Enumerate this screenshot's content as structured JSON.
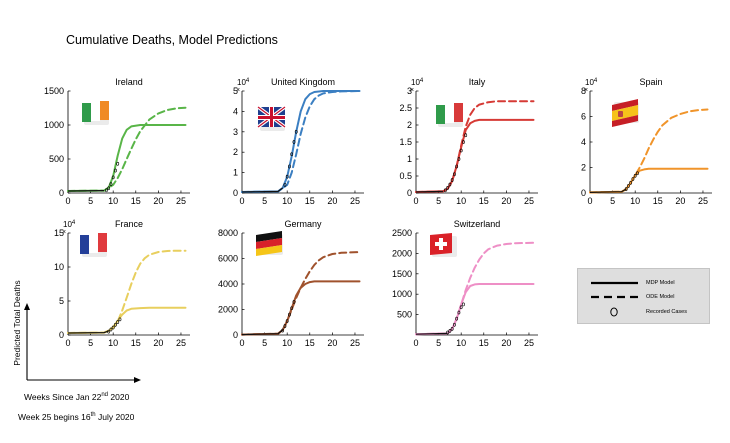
{
  "figure": {
    "title": "Cumulative Deaths, Model Predictions",
    "xaxis_note": "Weeks Since Jan 22",
    "xaxis_note_sup": "nd",
    "xaxis_note_tail": " 2020",
    "week_note": "Week 25 begins 16",
    "week_note_sup": "th",
    "week_note_tail": " July 2020",
    "ylabel": "Predicted Total Deaths"
  },
  "legend": {
    "items": [
      {
        "label": "MDP Model",
        "style": "solid"
      },
      {
        "label": "ODE Model",
        "style": "dashed"
      },
      {
        "label": "Recorded Cases",
        "style": "circle"
      }
    ]
  },
  "chart_data": [
    {
      "type": "line",
      "title": "Ireland",
      "color": "#59b548",
      "flag": "ireland-flag",
      "multiplier": "",
      "xlim": [
        0,
        27
      ],
      "ylim": [
        0,
        1500
      ],
      "xticks": [
        0,
        5,
        10,
        15,
        20,
        25
      ],
      "yticks": [
        0,
        500,
        1000,
        1500
      ],
      "ytick_labels": [
        "0",
        "500",
        "1000",
        "1500"
      ],
      "series": [
        {
          "name": "MDP Model",
          "style": "solid",
          "x": [
            0,
            8,
            9,
            10,
            11,
            12,
            13,
            14,
            16,
            18,
            26
          ],
          "y": [
            30,
            35,
            80,
            250,
            550,
            800,
            930,
            980,
            1000,
            1000,
            1000
          ]
        },
        {
          "name": "ODE Model",
          "style": "dashed",
          "x": [
            0,
            8,
            10,
            11,
            12,
            13,
            14,
            15,
            16,
            18,
            20,
            22,
            24,
            26
          ],
          "y": [
            30,
            35,
            120,
            220,
            350,
            500,
            650,
            790,
            910,
            1080,
            1170,
            1220,
            1245,
            1255
          ]
        },
        {
          "name": "Recorded Cases",
          "style": "circle",
          "x": [
            8.5,
            9,
            9.5,
            10,
            10.5,
            11
          ],
          "y": [
            40,
            70,
            130,
            230,
            330,
            430
          ]
        }
      ]
    },
    {
      "type": "line",
      "title": "United Kingdom",
      "color": "#3b7fc2",
      "flag": "uk-flag",
      "multiplier": "10^4",
      "xlim": [
        0,
        27
      ],
      "ylim": [
        0,
        5
      ],
      "xticks": [
        0,
        5,
        10,
        15,
        20,
        25
      ],
      "yticks": [
        0,
        1,
        2,
        3,
        4,
        5
      ],
      "ytick_labels": [
        "0",
        "1",
        "2",
        "3",
        "4",
        "5"
      ],
      "series": [
        {
          "name": "MDP Model",
          "style": "solid",
          "x": [
            0,
            8,
            9,
            10,
            11,
            12,
            13,
            14,
            15,
            16,
            18,
            20,
            26
          ],
          "y": [
            0.05,
            0.08,
            0.25,
            0.8,
            1.8,
            3.0,
            4.0,
            4.6,
            4.85,
            4.95,
            5.0,
            5.0,
            5.0
          ]
        },
        {
          "name": "ODE Model",
          "style": "dashed",
          "x": [
            0,
            8,
            10,
            11,
            12,
            13,
            14,
            15,
            16,
            17,
            18,
            20,
            22,
            26
          ],
          "y": [
            0.05,
            0.08,
            0.4,
            1.0,
            1.9,
            2.9,
            3.7,
            4.25,
            4.6,
            4.78,
            4.88,
            4.95,
            4.98,
            5.0
          ]
        },
        {
          "name": "Recorded Cases",
          "style": "circle",
          "x": [
            9.5,
            10,
            10.5,
            11,
            11.5,
            12
          ],
          "y": [
            0.4,
            0.8,
            1.3,
            1.9,
            2.5,
            3.0
          ]
        }
      ]
    },
    {
      "type": "line",
      "title": "Italy",
      "color": "#d63a35",
      "flag": "italy-flag",
      "multiplier": "10^4",
      "xlim": [
        0,
        27
      ],
      "ylim": [
        0,
        3
      ],
      "xticks": [
        0,
        5,
        10,
        15,
        20,
        25
      ],
      "yticks": [
        0,
        0.5,
        1,
        1.5,
        2,
        2.5,
        3
      ],
      "ytick_labels": [
        "0",
        "0.5",
        "1",
        "1.5",
        "2",
        "2.5",
        "3"
      ],
      "series": [
        {
          "name": "MDP Model",
          "style": "solid",
          "x": [
            0,
            6,
            7,
            8,
            9,
            10,
            11,
            12,
            13,
            14,
            16,
            26
          ],
          "y": [
            0.03,
            0.05,
            0.12,
            0.35,
            0.8,
            1.35,
            1.85,
            2.05,
            2.12,
            2.15,
            2.15,
            2.15
          ]
        },
        {
          "name": "ODE Model",
          "style": "dashed",
          "x": [
            0,
            6,
            7,
            8,
            9,
            10,
            11,
            12,
            13,
            14,
            16,
            18,
            20,
            26
          ],
          "y": [
            0.03,
            0.05,
            0.12,
            0.35,
            0.8,
            1.4,
            1.95,
            2.3,
            2.5,
            2.6,
            2.67,
            2.7,
            2.7,
            2.7
          ]
        },
        {
          "name": "Recorded Cases",
          "style": "circle",
          "x": [
            6.5,
            7,
            7.5,
            8,
            8.5,
            9,
            9.5,
            10,
            10.5,
            11
          ],
          "y": [
            0.08,
            0.15,
            0.25,
            0.38,
            0.55,
            0.78,
            1.0,
            1.25,
            1.5,
            1.7
          ]
        }
      ]
    },
    {
      "type": "line",
      "title": "Spain",
      "color": "#f0942a",
      "flag": "spain-flag",
      "multiplier": "10^4",
      "xlim": [
        0,
        27
      ],
      "ylim": [
        0,
        8
      ],
      "xticks": [
        0,
        5,
        10,
        15,
        20,
        25
      ],
      "yticks": [
        0,
        2,
        4,
        6,
        8
      ],
      "ytick_labels": [
        "0",
        "2",
        "4",
        "6",
        "8"
      ],
      "series": [
        {
          "name": "MDP Model",
          "style": "solid",
          "x": [
            0,
            7,
            8,
            9,
            10,
            11,
            12,
            13,
            14,
            16,
            26
          ],
          "y": [
            0.05,
            0.1,
            0.3,
            0.8,
            1.4,
            1.75,
            1.85,
            1.9,
            1.9,
            1.9,
            1.9
          ]
        },
        {
          "name": "ODE Model",
          "style": "dashed",
          "x": [
            0,
            7,
            8,
            9,
            10,
            11,
            12,
            13,
            14,
            15,
            16,
            18,
            20,
            22,
            24,
            26
          ],
          "y": [
            0.05,
            0.1,
            0.3,
            0.8,
            1.4,
            2.0,
            2.7,
            3.5,
            4.2,
            4.8,
            5.3,
            5.9,
            6.2,
            6.4,
            6.5,
            6.55
          ]
        },
        {
          "name": "Recorded Cases",
          "style": "circle",
          "x": [
            8,
            8.5,
            9,
            9.5,
            10,
            10.5
          ],
          "y": [
            0.3,
            0.55,
            0.8,
            1.1,
            1.35,
            1.55
          ]
        }
      ]
    },
    {
      "type": "line",
      "title": "France",
      "color": "#e8cf5e",
      "flag": "france-flag",
      "multiplier": "10^4",
      "xlim": [
        0,
        27
      ],
      "ylim": [
        0,
        15
      ],
      "xticks": [
        0,
        5,
        10,
        15,
        20,
        25
      ],
      "yticks": [
        0,
        5,
        10,
        15
      ],
      "ytick_labels": [
        "0",
        "5",
        "10",
        "15"
      ],
      "series": [
        {
          "name": "MDP Model",
          "style": "solid",
          "x": [
            0,
            8,
            9,
            10,
            11,
            12,
            13,
            14,
            16,
            18,
            26
          ],
          "y": [
            0.3,
            0.35,
            0.6,
            1.2,
            2.1,
            3.0,
            3.6,
            3.85,
            3.95,
            4.0,
            4.0
          ]
        },
        {
          "name": "ODE Model",
          "style": "dashed",
          "x": [
            0,
            8,
            10,
            11,
            12,
            13,
            14,
            15,
            16,
            17,
            18,
            20,
            22,
            24,
            26
          ],
          "y": [
            0.3,
            0.35,
            1.0,
            2.0,
            3.6,
            5.5,
            7.5,
            9.2,
            10.5,
            11.3,
            11.8,
            12.2,
            12.35,
            12.4,
            12.4
          ]
        },
        {
          "name": "Recorded Cases",
          "style": "circle",
          "x": [
            9,
            9.5,
            10,
            10.5,
            11,
            11.5
          ],
          "y": [
            0.5,
            0.8,
            1.1,
            1.5,
            1.9,
            2.3
          ]
        }
      ]
    },
    {
      "type": "line",
      "title": "Germany",
      "color": "#a0522d",
      "flag": "germany-flag",
      "multiplier": "",
      "xlim": [
        0,
        27
      ],
      "ylim": [
        0,
        8000
      ],
      "xticks": [
        0,
        5,
        10,
        15,
        20,
        25
      ],
      "yticks": [
        0,
        2000,
        4000,
        6000,
        8000
      ],
      "ytick_labels": [
        "0",
        "2000",
        "4000",
        "6000",
        "8000"
      ],
      "series": [
        {
          "name": "MDP Model",
          "style": "solid",
          "x": [
            0,
            8,
            9,
            10,
            11,
            12,
            13,
            14,
            15,
            16,
            18,
            20,
            26
          ],
          "y": [
            30,
            100,
            400,
            1100,
            2100,
            3100,
            3700,
            4000,
            4150,
            4200,
            4200,
            4200,
            4200
          ]
        },
        {
          "name": "ODE Model",
          "style": "dashed",
          "x": [
            0,
            8,
            9,
            10,
            11,
            12,
            13,
            14,
            15,
            16,
            17,
            18,
            20,
            22,
            24,
            26
          ],
          "y": [
            30,
            100,
            400,
            1100,
            2000,
            2900,
            3700,
            4400,
            5000,
            5500,
            5850,
            6100,
            6350,
            6450,
            6480,
            6500
          ]
        },
        {
          "name": "Recorded Cases",
          "style": "circle",
          "x": [
            9,
            9.5,
            10,
            10.5,
            11,
            11.5
          ],
          "y": [
            350,
            700,
            1100,
            1600,
            2100,
            2600
          ]
        }
      ]
    },
    {
      "type": "line",
      "title": "Switzerland",
      "color": "#ee8fc6",
      "flag": "switzerland-flag",
      "multiplier": "",
      "xlim": [
        0,
        27
      ],
      "ylim": [
        0,
        2500
      ],
      "xticks": [
        0,
        5,
        10,
        15,
        20,
        25
      ],
      "yticks": [
        500,
        1000,
        1500,
        2000,
        2500
      ],
      "ytick_labels": [
        "500",
        "1000",
        "1500",
        "2000",
        "2500"
      ],
      "series": [
        {
          "name": "MDP Model",
          "style": "solid",
          "x": [
            0,
            7,
            8,
            9,
            10,
            11,
            12,
            13,
            14,
            16,
            18,
            26
          ],
          "y": [
            20,
            40,
            150,
            400,
            750,
            1050,
            1200,
            1240,
            1250,
            1250,
            1250,
            1250
          ]
        },
        {
          "name": "ODE Model",
          "style": "dashed",
          "x": [
            0,
            7,
            8,
            9,
            10,
            11,
            12,
            13,
            14,
            15,
            16,
            17,
            18,
            20,
            22,
            24,
            26
          ],
          "y": [
            20,
            40,
            150,
            400,
            750,
            1100,
            1400,
            1650,
            1850,
            2000,
            2100,
            2150,
            2190,
            2230,
            2250,
            2255,
            2260
          ]
        },
        {
          "name": "Recorded Cases",
          "style": "circle",
          "x": [
            7,
            7.5,
            8,
            8.5,
            9,
            9.5,
            10,
            10.5
          ],
          "y": [
            60,
            100,
            150,
            250,
            400,
            550,
            680,
            750
          ]
        }
      ]
    }
  ]
}
